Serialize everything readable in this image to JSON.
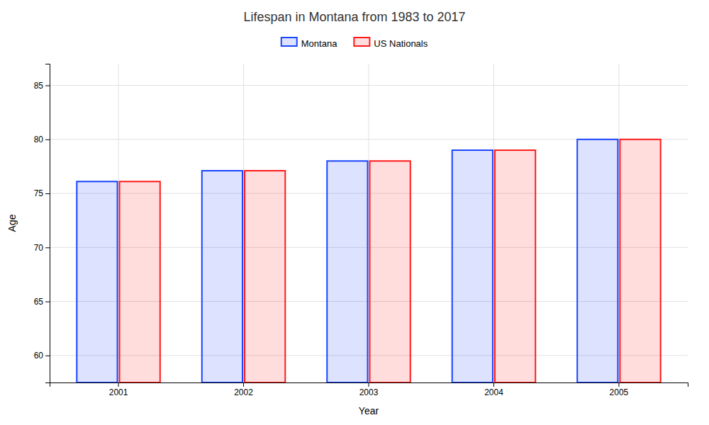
{
  "chart_data": {
    "type": "bar",
    "title": "Lifespan in Montana from 1983 to 2017",
    "x_label": "Year",
    "y_label": "Age",
    "categories": [
      "2001",
      "2002",
      "2003",
      "2004",
      "2005"
    ],
    "series": [
      {
        "name": "Montana",
        "color": "#1a44ff",
        "values": [
          76.1,
          77.1,
          78.0,
          79.0,
          80.0
        ]
      },
      {
        "name": "US Nationals",
        "color": "#ff1a1a",
        "values": [
          76.1,
          77.1,
          78.0,
          79.0,
          80.0
        ]
      }
    ],
    "ylim": [
      57.5,
      87
    ],
    "yticks": [
      60,
      65,
      70,
      75,
      80,
      85
    ],
    "grid": true,
    "legend": "top"
  }
}
